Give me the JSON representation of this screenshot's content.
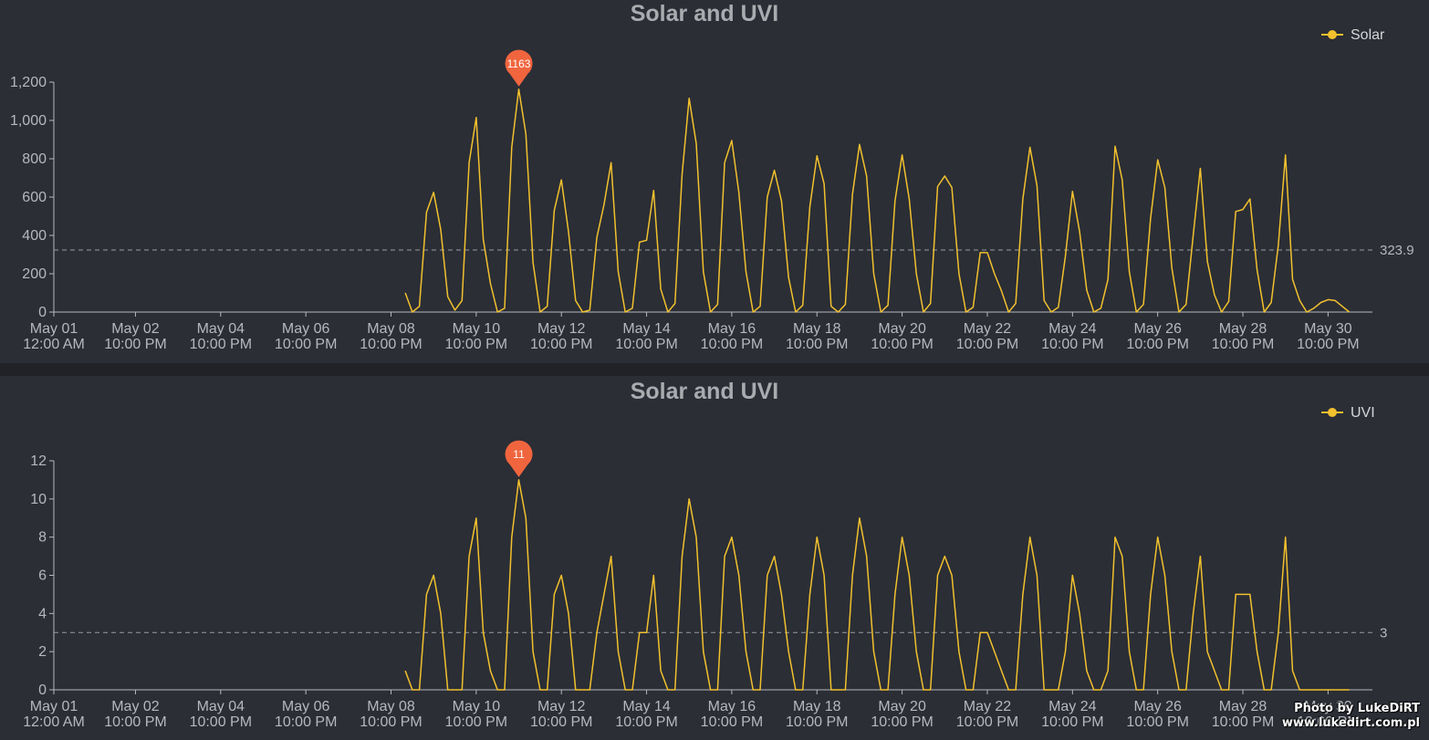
{
  "watermark": {
    "line1": "Photo by LukeDiRT",
    "line2": "www.lukedirt.com.pl"
  },
  "colors": {
    "background": "#2b2e35",
    "line": "#f2c12e",
    "marker": "#f0653e",
    "axis": "#b6b8bc",
    "reference_line": "#9a9ca0"
  },
  "chart_data": [
    {
      "type": "line",
      "title": "Solar and UVI",
      "series": [
        {
          "name": "Solar",
          "x_start": "May 09 06:00",
          "x_step_hours": 4,
          "values": [
            100,
            0,
            30,
            520,
            625,
            430,
            80,
            10,
            60,
            780,
            1015,
            380,
            150,
            0,
            20,
            860,
            1163,
            930,
            260,
            0,
            30,
            530,
            690,
            420,
            60,
            0,
            10,
            390,
            560,
            780,
            210,
            0,
            20,
            365,
            375,
            635,
            120,
            0,
            45,
            720,
            1115,
            880,
            210,
            0,
            40,
            780,
            895,
            625,
            210,
            0,
            30,
            600,
            740,
            580,
            180,
            0,
            35,
            550,
            815,
            670,
            30,
            0,
            40,
            615,
            875,
            710,
            200,
            0,
            35,
            580,
            820,
            590,
            200,
            0,
            45,
            655,
            710,
            650,
            200,
            0,
            25,
            310,
            310,
            200,
            110,
            0,
            45,
            590,
            860,
            660,
            60,
            0,
            25,
            290,
            630,
            420,
            115,
            0,
            20,
            170,
            865,
            690,
            210,
            0,
            40,
            490,
            795,
            650,
            230,
            0,
            40,
            400,
            750,
            265,
            90,
            0,
            55,
            525,
            535,
            590,
            220,
            0,
            50,
            350,
            820,
            170,
            60,
            0,
            20,
            50,
            65,
            60,
            30,
            0
          ]
        }
      ],
      "x_ticks": [
        {
          "t": 0,
          "line1": "May 01",
          "line2": "12:00 AM"
        },
        {
          "t": 46,
          "line1": "May 02",
          "line2": "10:00 PM"
        },
        {
          "t": 94,
          "line1": "May 04",
          "line2": "10:00 PM"
        },
        {
          "t": 142,
          "line1": "May 06",
          "line2": "10:00 PM"
        },
        {
          "t": 190,
          "line1": "May 08",
          "line2": "10:00 PM"
        },
        {
          "t": 238,
          "line1": "May 10",
          "line2": "10:00 PM"
        },
        {
          "t": 286,
          "line1": "May 12",
          "line2": "10:00 PM"
        },
        {
          "t": 334,
          "line1": "May 14",
          "line2": "10:00 PM"
        },
        {
          "t": 382,
          "line1": "May 16",
          "line2": "10:00 PM"
        },
        {
          "t": 430,
          "line1": "May 18",
          "line2": "10:00 PM"
        },
        {
          "t": 478,
          "line1": "May 20",
          "line2": "10:00 PM"
        },
        {
          "t": 526,
          "line1": "May 22",
          "line2": "10:00 PM"
        },
        {
          "t": 574,
          "line1": "May 24",
          "line2": "10:00 PM"
        },
        {
          "t": 622,
          "line1": "May 26",
          "line2": "10:00 PM"
        },
        {
          "t": 670,
          "line1": "May 28",
          "line2": "10:00 PM"
        },
        {
          "t": 718,
          "line1": "May 30",
          "line2": "10:00 PM"
        }
      ],
      "x_range_hours": [
        0,
        743
      ],
      "y_ticks": [
        0,
        200,
        400,
        600,
        800,
        1000,
        1200
      ],
      "y_tick_labels": [
        "0",
        "200",
        "400",
        "600",
        "800",
        "1,000",
        "1,200"
      ],
      "ylim": [
        0,
        1200
      ],
      "reference_line": {
        "value": 323.9,
        "label": "323.9",
        "style": "dashed"
      },
      "max_marker": {
        "value": 1163,
        "label": "1163"
      },
      "legend": {
        "label": "Solar",
        "position": "top-right"
      },
      "grid": false
    },
    {
      "type": "line",
      "title": "Solar and UVI",
      "series": [
        {
          "name": "UVI",
          "x_start": "May 09 06:00",
          "x_step_hours": 4,
          "values": [
            1,
            0,
            0,
            5,
            6,
            4,
            0,
            0,
            0,
            7,
            9,
            3,
            1,
            0,
            0,
            8,
            11,
            9,
            2,
            0,
            0,
            5,
            6,
            4,
            0,
            0,
            0,
            3,
            5,
            7,
            2,
            0,
            0,
            3,
            3,
            6,
            1,
            0,
            0,
            7,
            10,
            8,
            2,
            0,
            0,
            7,
            8,
            6,
            2,
            0,
            0,
            6,
            7,
            5,
            2,
            0,
            0,
            5,
            8,
            6,
            0,
            0,
            0,
            6,
            9,
            7,
            2,
            0,
            0,
            5,
            8,
            6,
            2,
            0,
            0,
            6,
            7,
            6,
            2,
            0,
            0,
            3,
            3,
            2,
            1,
            0,
            0,
            5,
            8,
            6,
            0,
            0,
            0,
            2,
            6,
            4,
            1,
            0,
            0,
            1,
            8,
            7,
            2,
            0,
            0,
            5,
            8,
            6,
            2,
            0,
            0,
            4,
            7,
            2,
            1,
            0,
            0,
            5,
            5,
            5,
            2,
            0,
            0,
            3,
            8,
            1,
            0,
            0,
            0,
            0,
            0,
            0,
            0,
            0
          ]
        }
      ],
      "x_ticks": [
        {
          "t": 0,
          "line1": "May 01",
          "line2": "12:00 AM"
        },
        {
          "t": 46,
          "line1": "May 02",
          "line2": "10:00 PM"
        },
        {
          "t": 94,
          "line1": "May 04",
          "line2": "10:00 PM"
        },
        {
          "t": 142,
          "line1": "May 06",
          "line2": "10:00 PM"
        },
        {
          "t": 190,
          "line1": "May 08",
          "line2": "10:00 PM"
        },
        {
          "t": 238,
          "line1": "May 10",
          "line2": "10:00 PM"
        },
        {
          "t": 286,
          "line1": "May 12",
          "line2": "10:00 PM"
        },
        {
          "t": 334,
          "line1": "May 14",
          "line2": "10:00 PM"
        },
        {
          "t": 382,
          "line1": "May 16",
          "line2": "10:00 PM"
        },
        {
          "t": 430,
          "line1": "May 18",
          "line2": "10:00 PM"
        },
        {
          "t": 478,
          "line1": "May 20",
          "line2": "10:00 PM"
        },
        {
          "t": 526,
          "line1": "May 22",
          "line2": "10:00 PM"
        },
        {
          "t": 574,
          "line1": "May 24",
          "line2": "10:00 PM"
        },
        {
          "t": 622,
          "line1": "May 26",
          "line2": "10:00 PM"
        },
        {
          "t": 670,
          "line1": "May 28",
          "line2": "10:00 PM"
        },
        {
          "t": 718,
          "line1": "May 30",
          "line2": "10:00 PM"
        }
      ],
      "x_range_hours": [
        0,
        743
      ],
      "y_ticks": [
        0,
        2,
        4,
        6,
        8,
        10,
        12
      ],
      "y_tick_labels": [
        "0",
        "2",
        "4",
        "6",
        "8",
        "10",
        "12"
      ],
      "ylim": [
        0,
        12
      ],
      "reference_line": {
        "value": 3,
        "label": "3",
        "style": "dashed"
      },
      "max_marker": {
        "value": 11,
        "label": "11"
      },
      "legend": {
        "label": "UVI",
        "position": "top-right"
      },
      "grid": false
    }
  ]
}
